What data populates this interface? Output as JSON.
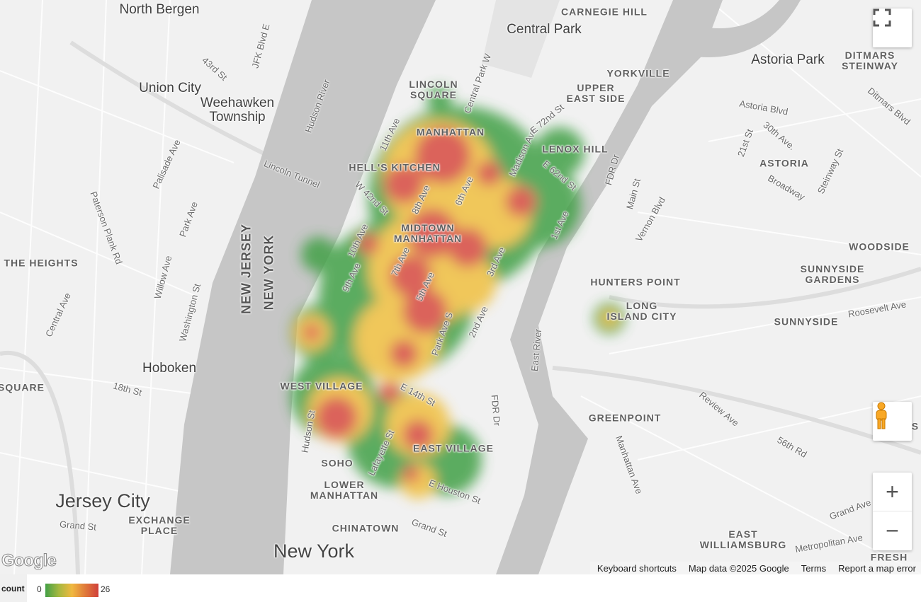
{
  "map": {
    "labels": [
      {
        "text": "North Bergen",
        "type": "city"
      },
      {
        "text": "Union City",
        "type": "city"
      },
      {
        "text": "Weehawken\nTownship",
        "type": "city"
      },
      {
        "text": "Hoboken",
        "type": "city"
      },
      {
        "text": "Jersey City",
        "type": "big"
      },
      {
        "text": "New York",
        "type": "big"
      },
      {
        "text": "EXCHANGE\nPLACE",
        "type": "hood"
      },
      {
        "text": "CHINATOWN",
        "type": "hood"
      },
      {
        "text": "LOWER\nMANHATTAN",
        "type": "hood"
      },
      {
        "text": "SOHO",
        "type": "hood"
      },
      {
        "text": "EAST VILLAGE",
        "type": "hood"
      },
      {
        "text": "WEST VILLAGE",
        "type": "hood"
      },
      {
        "text": "MIDTOWN\nMANHATTAN",
        "type": "hood"
      },
      {
        "text": "HELL'S KITCHEN",
        "type": "hood"
      },
      {
        "text": "MANHATTAN",
        "type": "hood"
      },
      {
        "text": "LINCOLN\nSQUARE",
        "type": "hood"
      },
      {
        "text": "Central Park",
        "type": "city"
      },
      {
        "text": "CARNEGIE HILL",
        "type": "hood"
      },
      {
        "text": "YORKVILLE",
        "type": "hood"
      },
      {
        "text": "UPPER\nEAST SIDE",
        "type": "hood"
      },
      {
        "text": "LENOX HILL",
        "type": "hood"
      },
      {
        "text": "Astoria Park",
        "type": "city"
      },
      {
        "text": "DITMARS\nSTEINWAY",
        "type": "hood"
      },
      {
        "text": "ASTORIA",
        "type": "hood"
      },
      {
        "text": "WOODSIDE",
        "type": "hood"
      },
      {
        "text": "SUNNYSIDE\nGARDENS",
        "type": "hood"
      },
      {
        "text": "HUNTERS POINT",
        "type": "hood"
      },
      {
        "text": "LONG\nISLAND CITY",
        "type": "hood"
      },
      {
        "text": "SUNNYSIDE",
        "type": "hood"
      },
      {
        "text": "GREENPOINT",
        "type": "hood"
      },
      {
        "text": "EAST\nWILLIAMSBURG",
        "type": "hood"
      },
      {
        "text": "THE HEIGHTS",
        "type": "hood"
      },
      {
        "text": "SQUARE",
        "type": "hood"
      },
      {
        "text": "FRESH",
        "type": "hood"
      },
      {
        "text": "MAS",
        "type": "hood"
      },
      {
        "text": "NEW JERSEY",
        "type": "state"
      },
      {
        "text": "NEW YORK",
        "type": "state"
      },
      {
        "text": "Lincoln Tunnel",
        "type": "street"
      },
      {
        "text": "Hudson River",
        "type": "street"
      },
      {
        "text": "East River",
        "type": "street"
      },
      {
        "text": "Palisade Ave",
        "type": "street"
      },
      {
        "text": "Paterson Plank Rd",
        "type": "street"
      },
      {
        "text": "Park Ave",
        "type": "street"
      },
      {
        "text": "43rd St",
        "type": "street"
      },
      {
        "text": "JFK Blvd E",
        "type": "street"
      },
      {
        "text": "Willow Ave",
        "type": "street"
      },
      {
        "text": "Washington St",
        "type": "street"
      },
      {
        "text": "Central Ave",
        "type": "street"
      },
      {
        "text": "18th St",
        "type": "street"
      },
      {
        "text": "Grand St",
        "type": "street"
      },
      {
        "text": "Grand St",
        "type": "street"
      },
      {
        "text": "11th Ave",
        "type": "street"
      },
      {
        "text": "10th Ave",
        "type": "street"
      },
      {
        "text": "9th Ave",
        "type": "street"
      },
      {
        "text": "8th Ave",
        "type": "street"
      },
      {
        "text": "7th Ave",
        "type": "street"
      },
      {
        "text": "6th Ave",
        "type": "street"
      },
      {
        "text": "5th Ave",
        "type": "street"
      },
      {
        "text": "3rd Ave",
        "type": "street"
      },
      {
        "text": "2nd Ave",
        "type": "street"
      },
      {
        "text": "1st Ave",
        "type": "street"
      },
      {
        "text": "W 42nd St",
        "type": "street"
      },
      {
        "text": "E 14th St",
        "type": "street"
      },
      {
        "text": "E Houston St",
        "type": "street"
      },
      {
        "text": "Lafayette St",
        "type": "street"
      },
      {
        "text": "Hudson St",
        "type": "street"
      },
      {
        "text": "Park Ave S",
        "type": "street"
      },
      {
        "text": "FDR Dr",
        "type": "street"
      },
      {
        "text": "FDR Dr",
        "type": "street"
      },
      {
        "text": "Madison Ave",
        "type": "street"
      },
      {
        "text": "E 72nd St",
        "type": "street"
      },
      {
        "text": "E 62nd St",
        "type": "street"
      },
      {
        "text": "Central Park W",
        "type": "street"
      },
      {
        "text": "Astoria Blvd",
        "type": "street"
      },
      {
        "text": "30th Ave.",
        "type": "street"
      },
      {
        "text": "21st St",
        "type": "street"
      },
      {
        "text": "Broadway",
        "type": "street"
      },
      {
        "text": "Steinway St",
        "type": "street"
      },
      {
        "text": "Vernon Blvd",
        "type": "street"
      },
      {
        "text": "Main St",
        "type": "street"
      },
      {
        "text": "Roosevelt Ave",
        "type": "street"
      },
      {
        "text": "Review Ave",
        "type": "street"
      },
      {
        "text": "56th Rd",
        "type": "street"
      },
      {
        "text": "Manhattan Ave",
        "type": "street"
      },
      {
        "text": "Metropolitan Ave",
        "type": "street"
      },
      {
        "text": "Grand Ave",
        "type": "street"
      },
      {
        "text": "Ditmars Blvd",
        "type": "street"
      }
    ],
    "heatmap_colors": [
      "#43a047",
      "#8bc34a",
      "#f0c040",
      "#e57c3a",
      "#d84c42"
    ]
  },
  "controls": {
    "fullscreen_icon": "fullscreen-icon",
    "pegman_icon": "street-view-pegman-icon",
    "zoom_in": "+",
    "zoom_out": "−"
  },
  "attribution": {
    "logo": "Google",
    "keyboard_shortcuts": "Keyboard shortcuts",
    "map_data": "Map data ©2025 Google",
    "terms": "Terms",
    "report": "Report a map error"
  },
  "legend": {
    "label": "count",
    "min": "0",
    "max": "26",
    "gradient": [
      "#43a047",
      "#a5b840",
      "#f0b840",
      "#e07a3a",
      "#d0403a"
    ]
  }
}
